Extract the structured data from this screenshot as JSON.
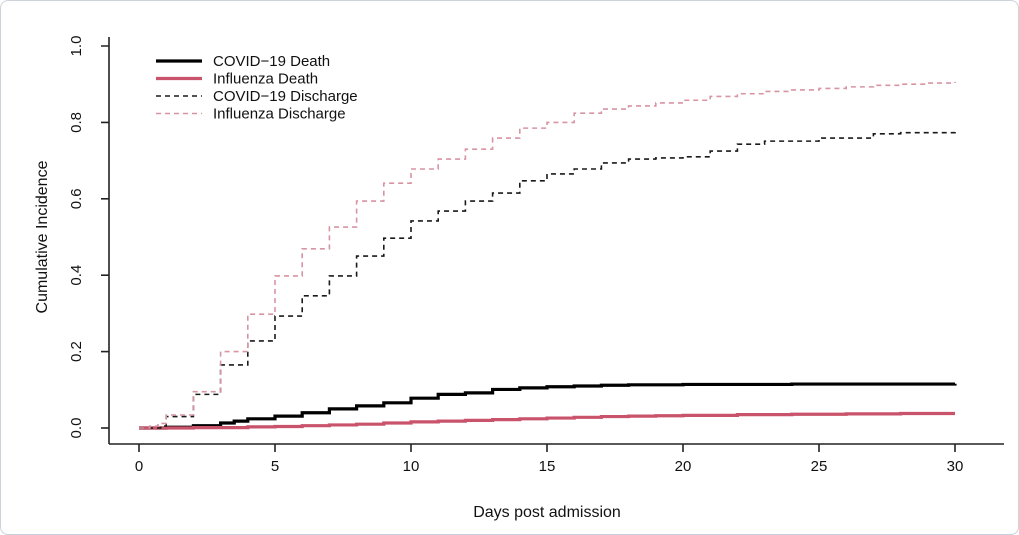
{
  "chart_data": {
    "type": "line",
    "subtype": "step-cumulative-incidence",
    "title": "",
    "xlabel": "Days post admission",
    "ylabel": "Cumulative Incidence",
    "xlim": [
      0,
      30
    ],
    "ylim": [
      0.0,
      1.0
    ],
    "x_ticks": [
      "0",
      "5",
      "10",
      "15",
      "20",
      "25",
      "30"
    ],
    "x_tick_values": [
      0,
      5,
      10,
      15,
      20,
      25,
      30
    ],
    "y_ticks": [
      "0.0",
      "0.2",
      "0.4",
      "0.6",
      "0.8",
      "1.0"
    ],
    "y_tick_values": [
      0.0,
      0.2,
      0.4,
      0.6,
      0.8,
      1.0
    ],
    "grid": false,
    "frame": "axes-only",
    "legend_position": "top-left",
    "colors": {
      "covid_black": "#000000",
      "influenza_solid_pink": "#c9536a",
      "covid_dashed_black": "#1a1a1a",
      "influenza_dashed_pink": "#d794a3"
    },
    "series": [
      {
        "name": "COVID−19 Death",
        "color": "#000000",
        "style": "solid",
        "width": 3.2,
        "points": [
          [
            0,
            0
          ],
          [
            1,
            0.002
          ],
          [
            2,
            0.006
          ],
          [
            3,
            0.013
          ],
          [
            3.5,
            0.018
          ],
          [
            4,
            0.024
          ],
          [
            5,
            0.031
          ],
          [
            6,
            0.04
          ],
          [
            7,
            0.05
          ],
          [
            8,
            0.058
          ],
          [
            9,
            0.066
          ],
          [
            10,
            0.078
          ],
          [
            11,
            0.088
          ],
          [
            12,
            0.092
          ],
          [
            13,
            0.101
          ],
          [
            14,
            0.105
          ],
          [
            15,
            0.108
          ],
          [
            16,
            0.11
          ],
          [
            17,
            0.112
          ],
          [
            18,
            0.113
          ],
          [
            20,
            0.114
          ],
          [
            24,
            0.115
          ],
          [
            30,
            0.116
          ]
        ]
      },
      {
        "name": "Influenza Death",
        "color": "#c9536a",
        "style": "solid",
        "width": 3.2,
        "points": [
          [
            0,
            0
          ],
          [
            2,
            0.001
          ],
          [
            4,
            0.003
          ],
          [
            5,
            0.004
          ],
          [
            6,
            0.006
          ],
          [
            7,
            0.008
          ],
          [
            8,
            0.01
          ],
          [
            9,
            0.013
          ],
          [
            10,
            0.016
          ],
          [
            11,
            0.018
          ],
          [
            12,
            0.02
          ],
          [
            13,
            0.022
          ],
          [
            14,
            0.024
          ],
          [
            15,
            0.026
          ],
          [
            16,
            0.028
          ],
          [
            17,
            0.03
          ],
          [
            18,
            0.031
          ],
          [
            19,
            0.032
          ],
          [
            20,
            0.033
          ],
          [
            22,
            0.035
          ],
          [
            24,
            0.036
          ],
          [
            26,
            0.037
          ],
          [
            28,
            0.038
          ],
          [
            30,
            0.038
          ]
        ]
      },
      {
        "name": "COVID−19 Discharge",
        "color": "#1a1a1a",
        "style": "dashed",
        "width": 1.6,
        "points": [
          [
            0,
            0
          ],
          [
            0.8,
            0.005
          ],
          [
            1,
            0.03
          ],
          [
            2,
            0.088
          ],
          [
            3,
            0.165
          ],
          [
            4,
            0.228
          ],
          [
            5,
            0.293
          ],
          [
            6,
            0.346
          ],
          [
            7,
            0.398
          ],
          [
            8,
            0.45
          ],
          [
            9,
            0.497
          ],
          [
            10,
            0.542
          ],
          [
            11,
            0.568
          ],
          [
            12,
            0.594
          ],
          [
            13,
            0.615
          ],
          [
            14,
            0.647
          ],
          [
            15,
            0.665
          ],
          [
            16,
            0.678
          ],
          [
            17,
            0.694
          ],
          [
            18,
            0.704
          ],
          [
            19,
            0.707
          ],
          [
            20,
            0.71
          ],
          [
            21,
            0.725
          ],
          [
            22,
            0.743
          ],
          [
            23,
            0.751
          ],
          [
            25,
            0.759
          ],
          [
            27,
            0.77
          ],
          [
            28,
            0.773
          ],
          [
            30,
            0.775
          ]
        ]
      },
      {
        "name": "Influenza Discharge",
        "color": "#d794a3",
        "style": "dashed",
        "width": 1.6,
        "points": [
          [
            0,
            0
          ],
          [
            0.4,
            0.005
          ],
          [
            0.7,
            0.012
          ],
          [
            1,
            0.034
          ],
          [
            2,
            0.095
          ],
          [
            3,
            0.2
          ],
          [
            4,
            0.298
          ],
          [
            5,
            0.398
          ],
          [
            6,
            0.469
          ],
          [
            7,
            0.526
          ],
          [
            8,
            0.594
          ],
          [
            9,
            0.641
          ],
          [
            10,
            0.678
          ],
          [
            11,
            0.704
          ],
          [
            12,
            0.73
          ],
          [
            13,
            0.759
          ],
          [
            14,
            0.785
          ],
          [
            15,
            0.8
          ],
          [
            16,
            0.824
          ],
          [
            17,
            0.835
          ],
          [
            18,
            0.843
          ],
          [
            19,
            0.851
          ],
          [
            20,
            0.858
          ],
          [
            21,
            0.868
          ],
          [
            22,
            0.875
          ],
          [
            23,
            0.881
          ],
          [
            24,
            0.885
          ],
          [
            25,
            0.889
          ],
          [
            26,
            0.893
          ],
          [
            27,
            0.897
          ],
          [
            28,
            0.9
          ],
          [
            29,
            0.903
          ],
          [
            30,
            0.906
          ]
        ]
      }
    ],
    "legend": [
      {
        "label": "COVID−19 Death"
      },
      {
        "label": "Influenza Death"
      },
      {
        "label": "COVID−19 Discharge"
      },
      {
        "label": "Influenza Discharge"
      }
    ]
  }
}
